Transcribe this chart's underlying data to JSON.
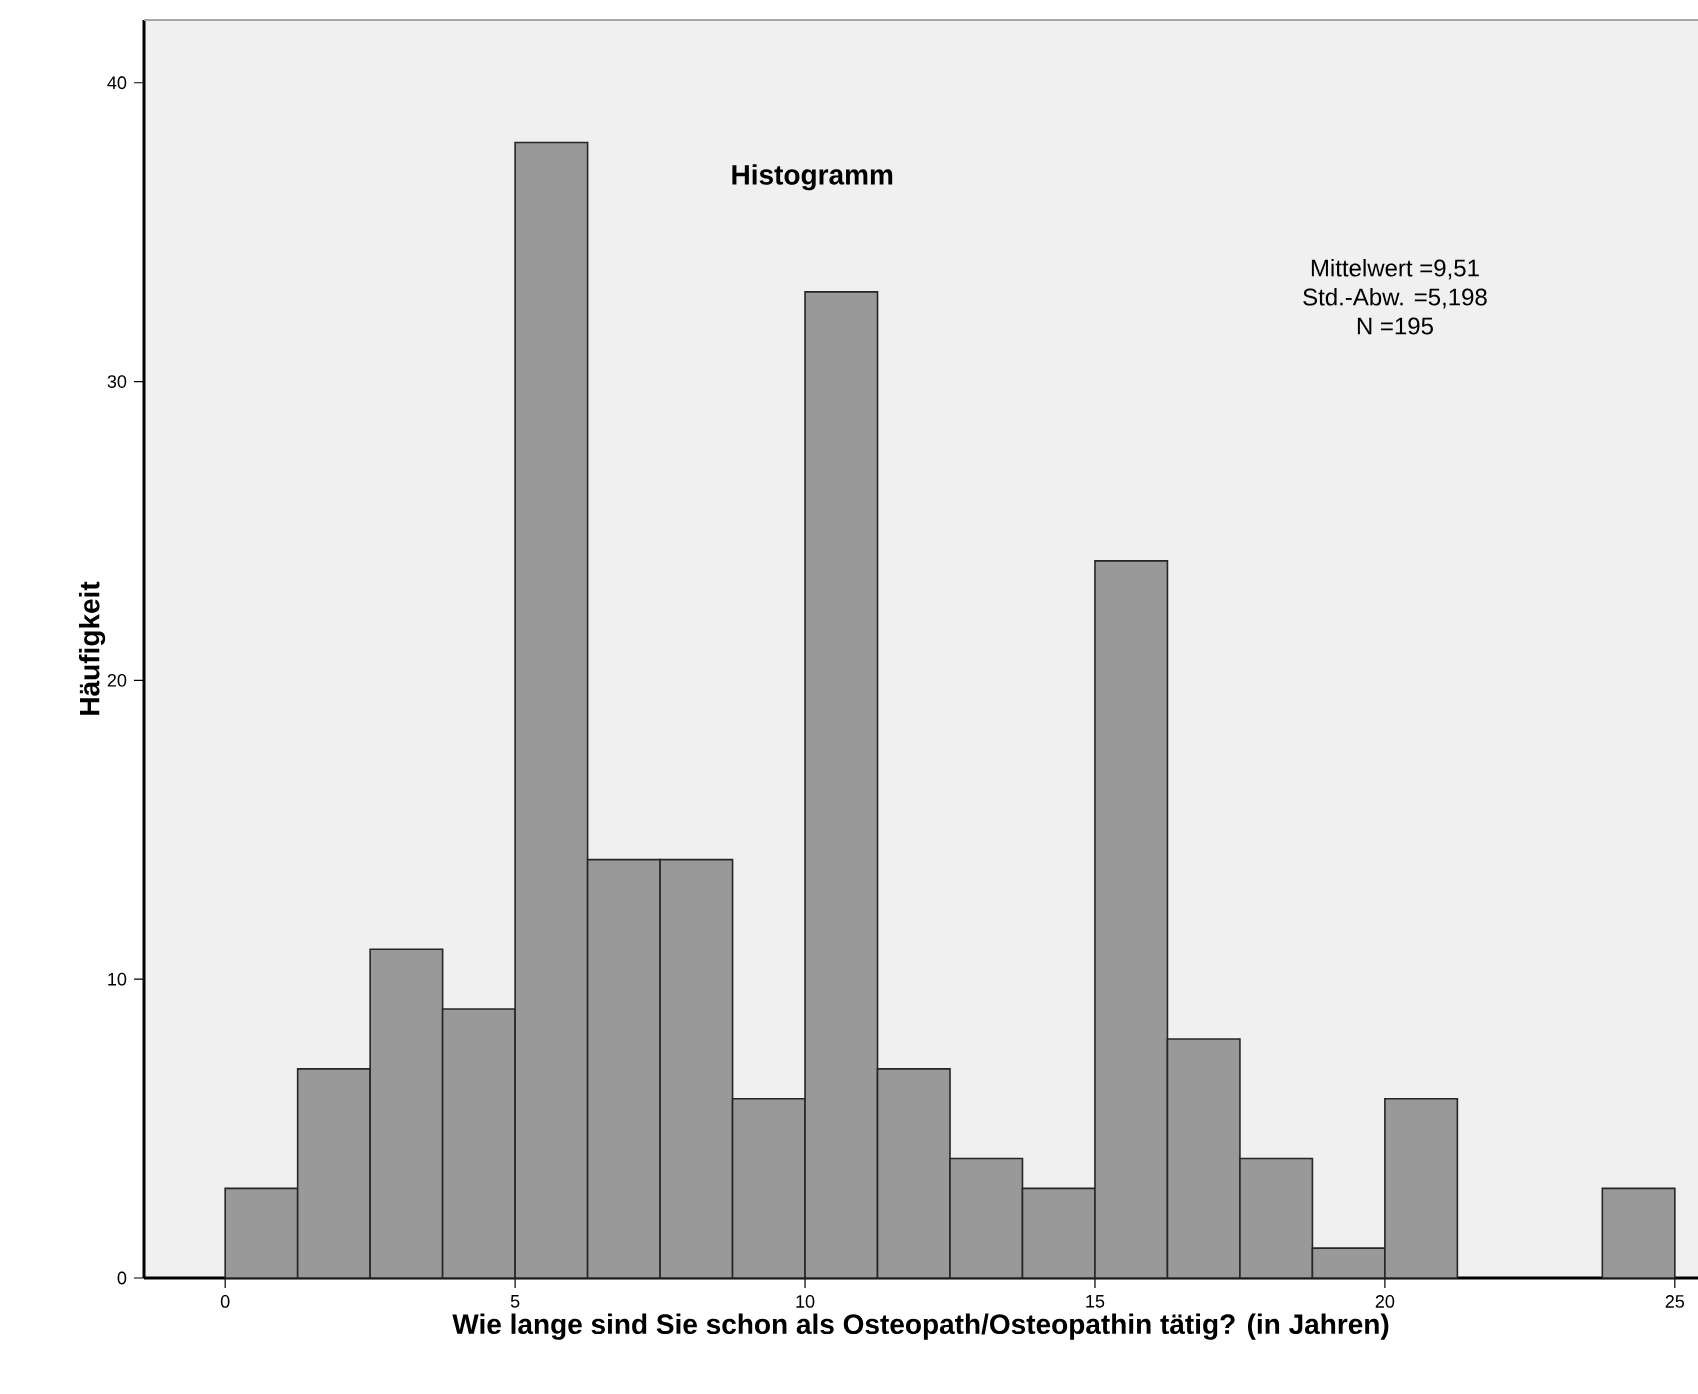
{
  "chart_data": {
    "type": "histogram",
    "title": "Histogramm",
    "xlabel": "Wie lange sind Sie schon als Osteopath/Osteopathin tätig? (in Jahren)",
    "ylabel": "Häufigkeit",
    "bins": [
      0,
      1.25,
      2.5,
      3.75,
      5,
      6.25,
      7.5,
      8.75,
      10,
      11.25,
      12.5,
      13.75,
      15,
      16.25,
      17.5,
      18.75,
      20,
      21.25,
      22.5,
      23.75,
      25
    ],
    "values": [
      3,
      7,
      11,
      9,
      38,
      14,
      14,
      6,
      33,
      7,
      4,
      3,
      24,
      8,
      4,
      1,
      6,
      0,
      0,
      3
    ],
    "color": "#999999",
    "xlim": [
      -1.4,
      25.4
    ],
    "ylim": [
      0,
      42.1
    ],
    "xticks": [
      0,
      5,
      10,
      15,
      20,
      25
    ],
    "yticks": [
      0,
      10,
      20,
      30,
      40
    ],
    "annotations": [
      "Mittelwert =9,51",
      "Std.-Abw. =5,198",
      "N =195"
    ],
    "grid": false
  }
}
